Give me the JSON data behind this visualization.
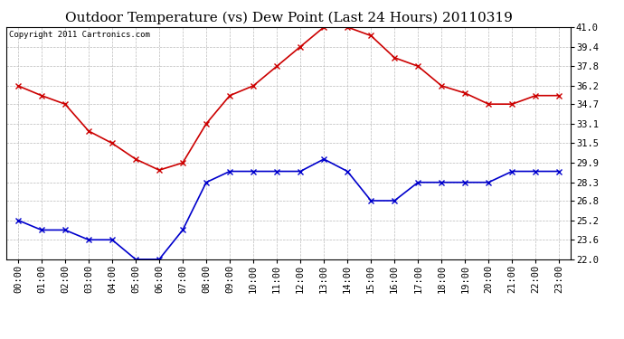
{
  "title": "Outdoor Temperature (vs) Dew Point (Last 24 Hours) 20110319",
  "copyright_text": "Copyright 2011 Cartronics.com",
  "x_labels": [
    "00:00",
    "01:00",
    "02:00",
    "03:00",
    "04:00",
    "05:00",
    "06:00",
    "07:00",
    "08:00",
    "09:00",
    "10:00",
    "11:00",
    "12:00",
    "13:00",
    "14:00",
    "15:00",
    "16:00",
    "17:00",
    "18:00",
    "19:00",
    "20:00",
    "21:00",
    "22:00",
    "23:00"
  ],
  "temp_values": [
    36.2,
    35.4,
    34.7,
    32.5,
    31.5,
    30.2,
    29.3,
    29.9,
    33.1,
    35.4,
    36.2,
    37.8,
    39.4,
    41.0,
    41.0,
    40.3,
    38.5,
    37.8,
    36.2,
    35.6,
    34.7,
    34.7,
    35.4,
    35.4
  ],
  "dew_values": [
    25.2,
    24.4,
    24.4,
    23.6,
    23.6,
    22.0,
    22.0,
    24.4,
    28.3,
    29.2,
    29.2,
    29.2,
    29.2,
    30.2,
    29.2,
    26.8,
    26.8,
    28.3,
    28.3,
    28.3,
    28.3,
    29.2,
    29.2,
    29.2
  ],
  "temp_color": "#cc0000",
  "dew_color": "#0000cc",
  "background_color": "#ffffff",
  "grid_color": "#bbbbbb",
  "ylim": [
    22.0,
    41.0
  ],
  "yticks": [
    22.0,
    23.6,
    25.2,
    26.8,
    28.3,
    29.9,
    31.5,
    33.1,
    34.7,
    36.2,
    37.8,
    39.4,
    41.0
  ],
  "title_fontsize": 11,
  "copyright_fontsize": 6.5,
  "tick_fontsize": 7.5,
  "marker": "x",
  "linewidth": 1.2,
  "markersize": 4,
  "markeredgewidth": 1.0
}
